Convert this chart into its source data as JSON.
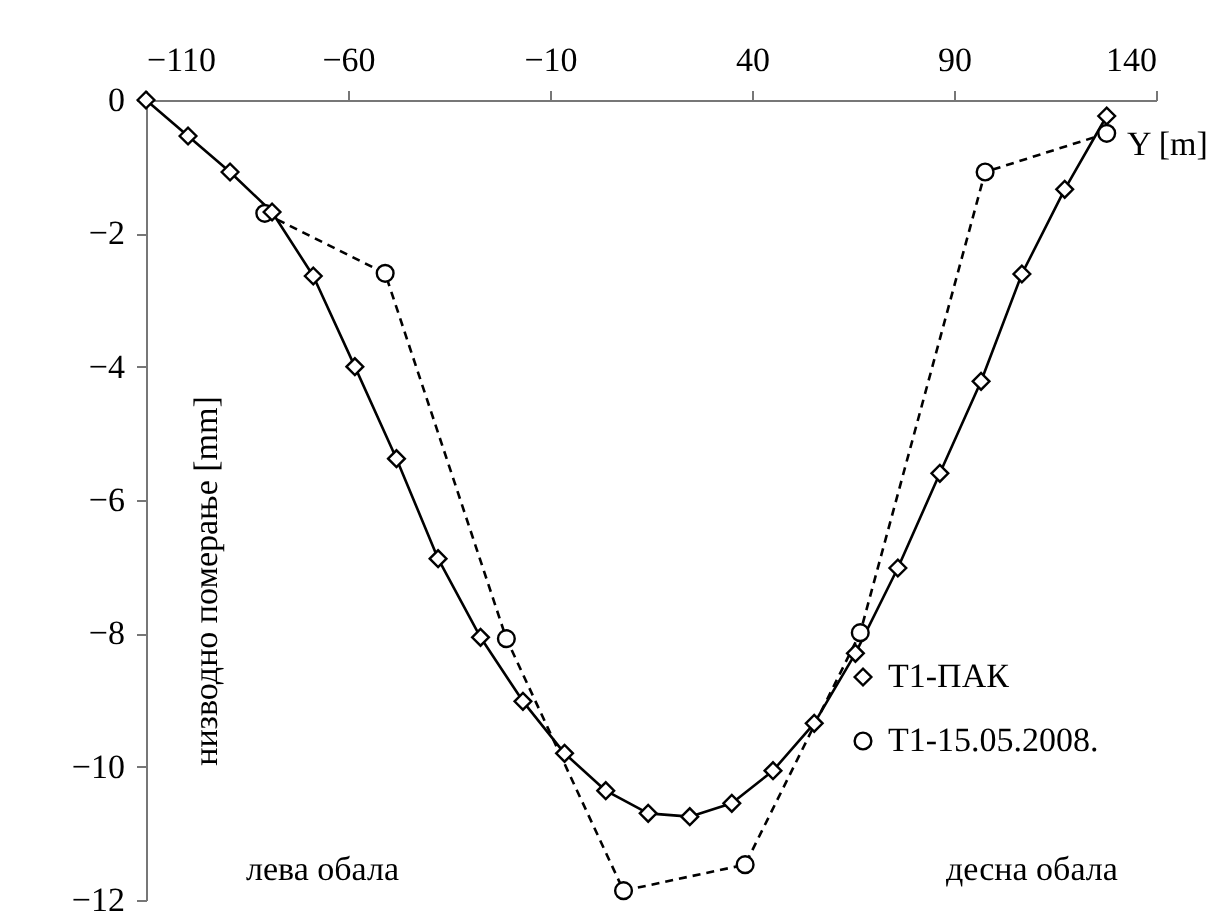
{
  "chart_data": {
    "type": "line",
    "xlabel": "Y [m]",
    "ylabel": "низводно померање [mm]",
    "xlim": [
      -110,
      140
    ],
    "xticks": [
      -110,
      -60,
      -10,
      40,
      90,
      140
    ],
    "ylim": [
      -12,
      0
    ],
    "yticks": [
      0,
      -2,
      -4,
      -6,
      -8,
      -10,
      -12
    ],
    "grid": false,
    "legend": "bottom right",
    "annotations": [
      "лева обала",
      "десна обала"
    ],
    "series": [
      {
        "name": "T1-ПАК",
        "color": "#000000",
        "marker": "diamond",
        "line_style": "solid",
        "x": [
          -110,
          -99.6,
          -89.2,
          -78.8,
          -68.6,
          -58.3,
          -48,
          -37.7,
          -27.2,
          -16.7,
          -6.4,
          3.8,
          14.3,
          24.6,
          35,
          45.2,
          55.4,
          65.6,
          76.1,
          86.5,
          96.7,
          106.8,
          117.4,
          127.8
        ],
        "values": [
          0,
          -0.54,
          -1.08,
          -1.68,
          -2.64,
          -4.0,
          -5.38,
          -6.88,
          -8.06,
          -9.02,
          -9.8,
          -10.36,
          -10.7,
          -10.75,
          -10.55,
          -10.06,
          -9.35,
          -8.3,
          -7.02,
          -5.6,
          -4.22,
          -2.61,
          -1.34,
          -0.24
        ]
      },
      {
        "name": "T1-15.05.2008.",
        "color": "#000000",
        "marker": "circle",
        "line_style": "dashed",
        "x": [
          -80.6,
          -50.8,
          -20.8,
          8.2,
          38.3,
          66.8,
          97.7,
          127.8
        ],
        "values": [
          -1.7,
          -2.6,
          -8.08,
          -11.86,
          -11.47,
          -7.99,
          -1.08,
          -0.5
        ]
      }
    ]
  }
}
